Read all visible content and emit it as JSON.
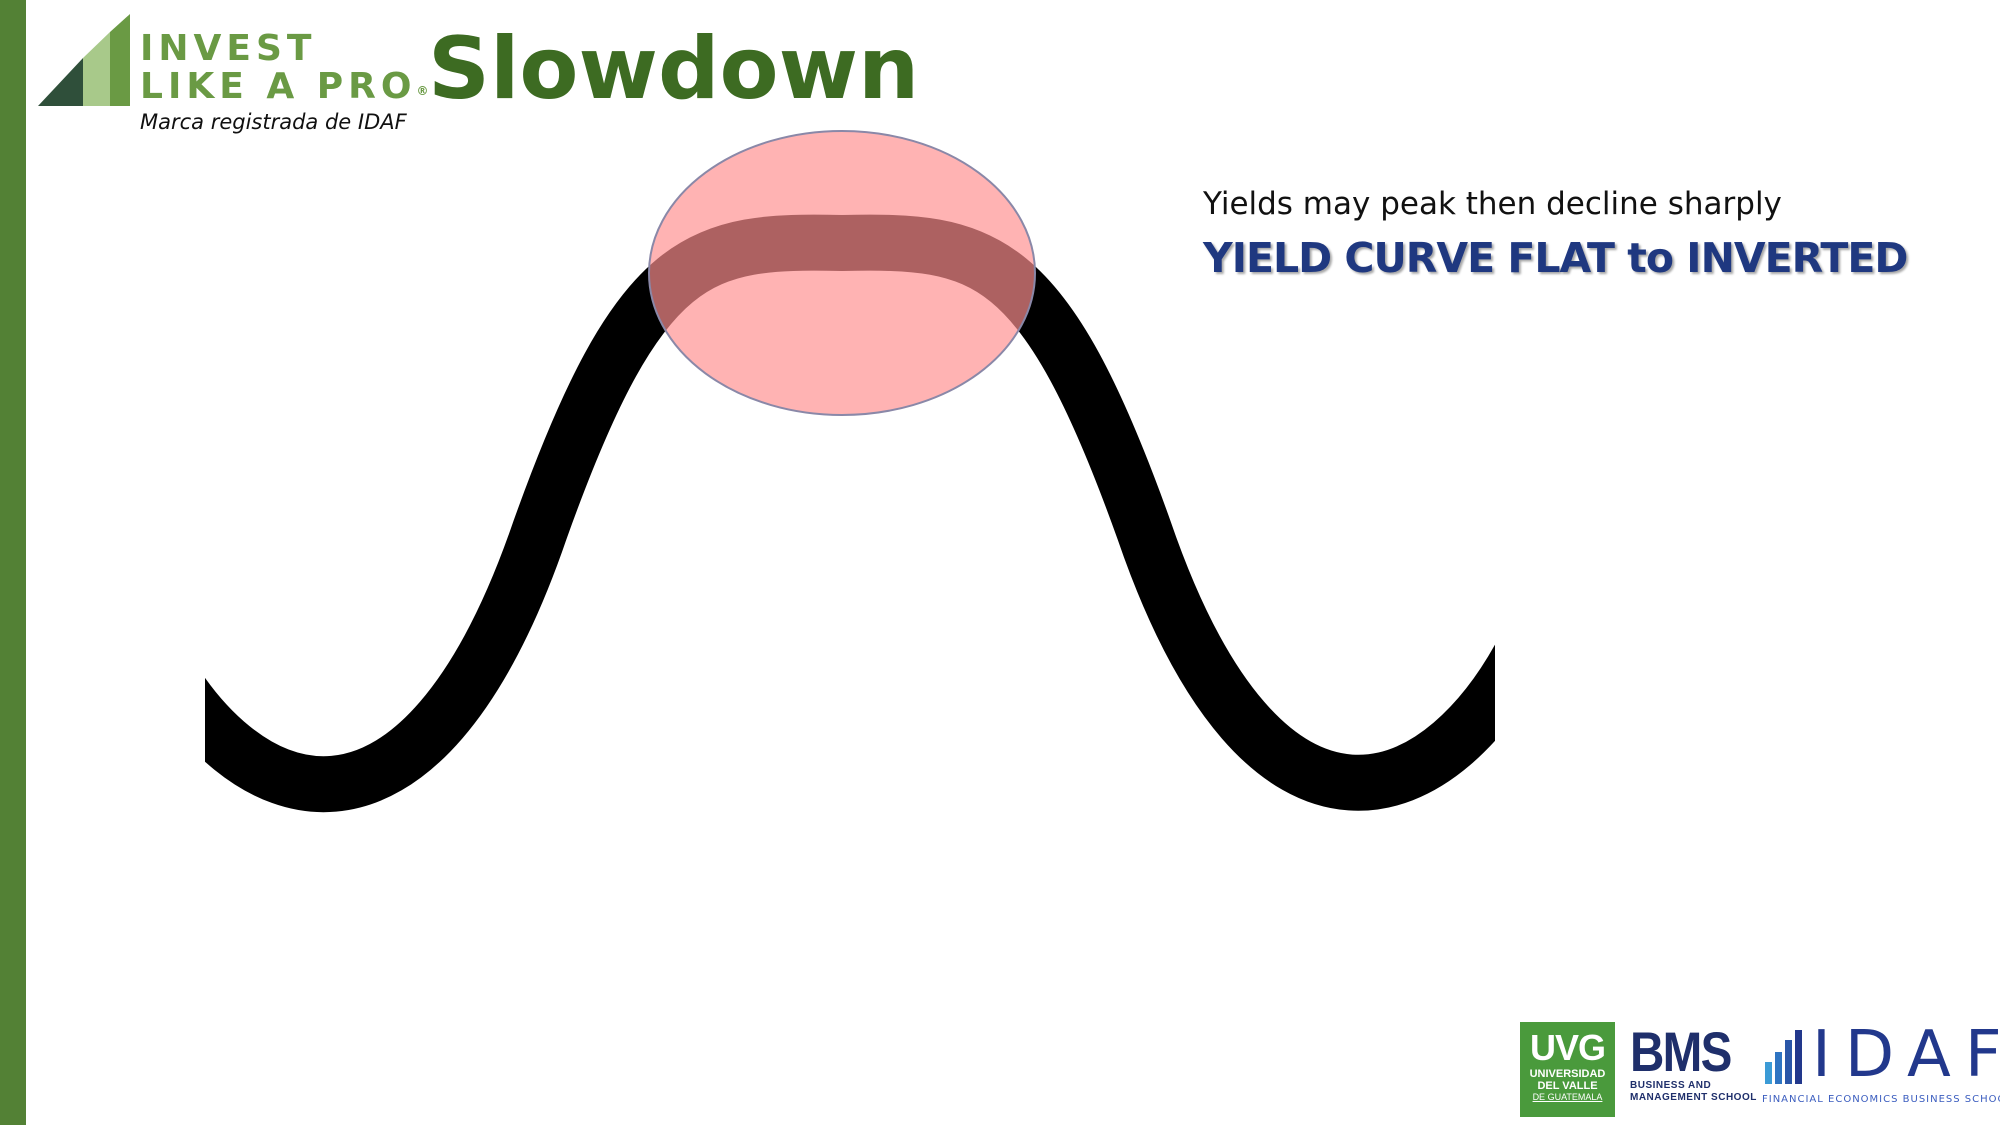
{
  "logo": {
    "line1": "INVEST",
    "line2": "LIKE A PRO",
    "registered": "®",
    "subtitle": "Marca registrada de IDAF"
  },
  "title": "Slowdown",
  "caption": "Yields may peak then decline sharply",
  "headline": "YIELD CURVE FLAT to INVERTED",
  "colors": {
    "accent_bar": "#538135",
    "title": "#3d6b22",
    "headline": "#1f3880",
    "highlight": "#ffb3b3",
    "curve": "#000000"
  },
  "footer": {
    "uvg": {
      "big": "UVG",
      "line1": "UNIVERSIDAD",
      "line2": "DEL VALLE",
      "line3": "DE GUATEMALA"
    },
    "bms": {
      "big": "BMS",
      "line1": "BUSINESS AND",
      "line2": "MANAGEMENT SCHOOL"
    },
    "idaf": {
      "big": "IDAF",
      "sub": "FINANCIAL ECONOMICS BUSINESS SCHOOL"
    }
  }
}
